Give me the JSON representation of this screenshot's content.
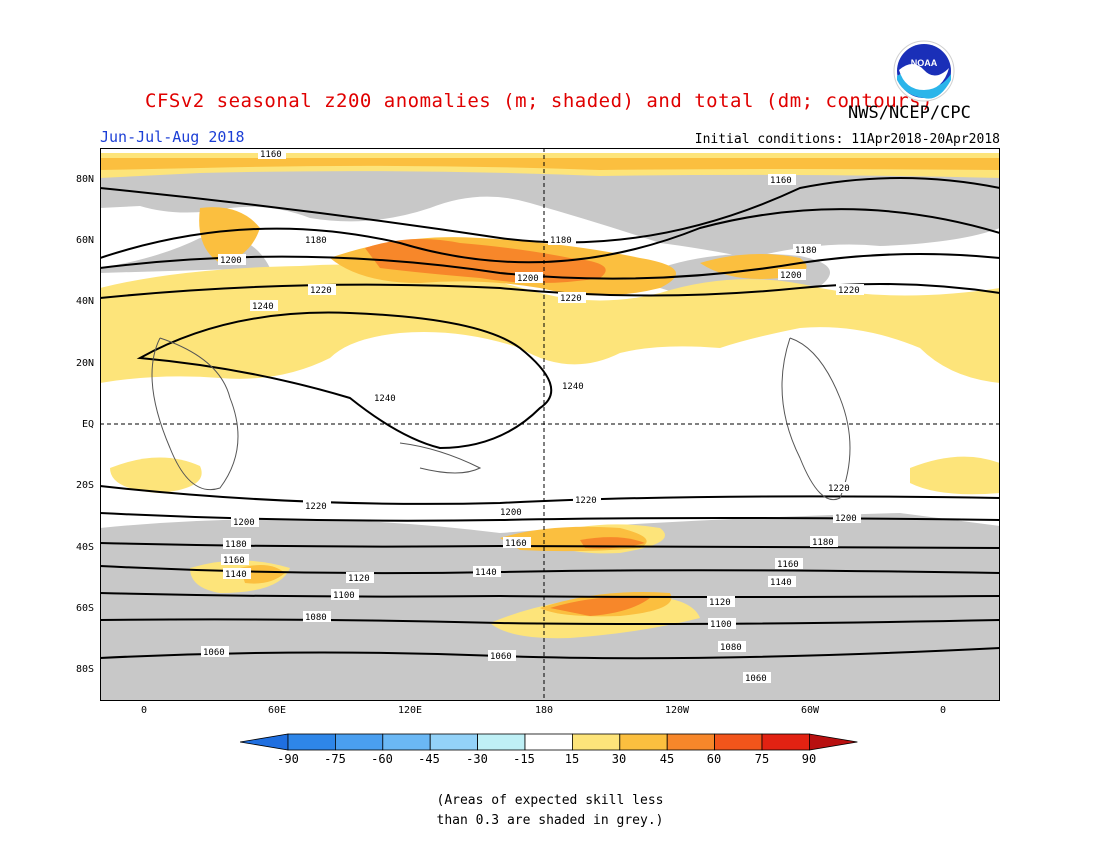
{
  "title": "CFSv2 seasonal z200 anomalies (m; shaded) and total (dm; contours)",
  "agency": "NWS/NCEP/CPC",
  "period": "Jun-Jul-Aug 2018",
  "initial_conditions": "Initial conditions: 11Apr2018-20Apr2018",
  "logo_text": "NOAA",
  "lat_labels": [
    "80N",
    "60N",
    "40N",
    "20N",
    "EQ",
    "20S",
    "40S",
    "60S",
    "80S"
  ],
  "lon_labels": [
    "0",
    "60E",
    "120E",
    "180",
    "120W",
    "60W",
    "0"
  ],
  "colorbar": {
    "labels": [
      "-90",
      "-75",
      "-60",
      "-45",
      "-30",
      "-15",
      "15",
      "30",
      "45",
      "60",
      "75",
      "90"
    ],
    "colors": [
      "#1f6fe0",
      "#2e86e8",
      "#4a9ff0",
      "#6bb8f5",
      "#93d2f8",
      "#bff0f6",
      "#ffffff",
      "#fde47a",
      "#fbbf3f",
      "#f7872a",
      "#f2551b",
      "#e22212",
      "#b81010"
    ]
  },
  "contour_labels": [
    "1160",
    "1160",
    "1180",
    "1180",
    "1180",
    "1200",
    "1200",
    "1200",
    "1220",
    "1220",
    "1220",
    "1240",
    "1240",
    "1240",
    "1220",
    "1220",
    "1220",
    "1200",
    "1200",
    "1200",
    "1180",
    "1180",
    "1160",
    "1160",
    "1160",
    "1140",
    "1140",
    "1140",
    "1120",
    "1120",
    "1100",
    "1100",
    "1080",
    "1080",
    "1060",
    "1060",
    "1060"
  ],
  "note_line1": "(Areas of expected skill less",
  "note_line2": "than 0.3 are shaded in grey.)"
}
